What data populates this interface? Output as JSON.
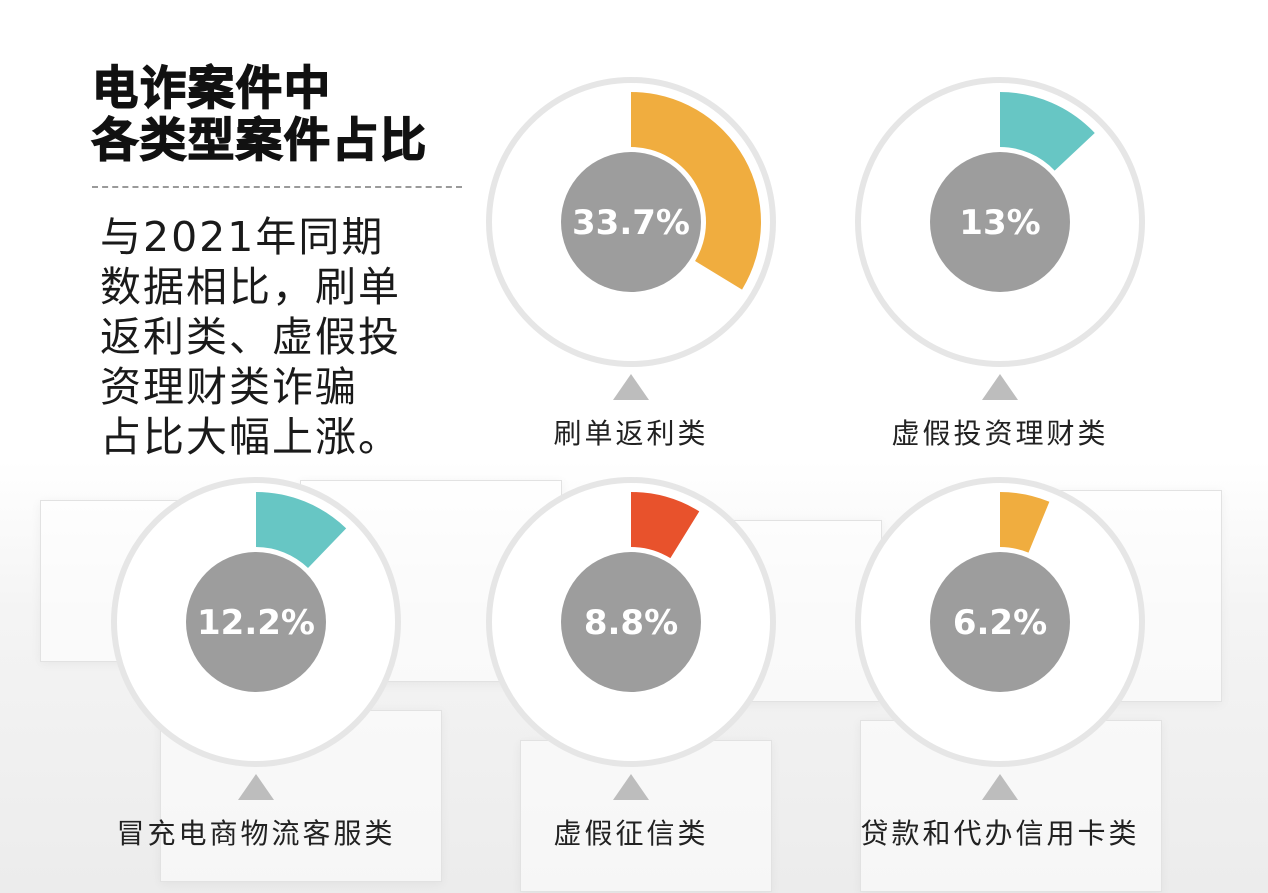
{
  "header": {
    "title": "电诈案件中\n各类型案件占比",
    "summary": "与2021年同期\n数据相比，刷单\n返利类、虚假投\n资理财类诈骗\n占比大幅上涨。"
  },
  "chart_data": {
    "type": "pie",
    "unit": "%",
    "items": [
      {
        "name": "刷单返利类",
        "value": 33.7,
        "label": "33.7%",
        "color": "#f0ad3f"
      },
      {
        "name": "虚假投资理财类",
        "value": 13,
        "label": "13%",
        "color": "#67c6c4"
      },
      {
        "name": "冒充电商物流客服类",
        "value": 12.2,
        "label": "12.2%",
        "color": "#67c6c4"
      },
      {
        "name": "虚假征信类",
        "value": 8.8,
        "label": "8.8%",
        "color": "#e8522c"
      },
      {
        "name": "贷款和代办信用卡类",
        "value": 6.2,
        "label": "6.2%",
        "color": "#f0ad3f"
      }
    ]
  }
}
